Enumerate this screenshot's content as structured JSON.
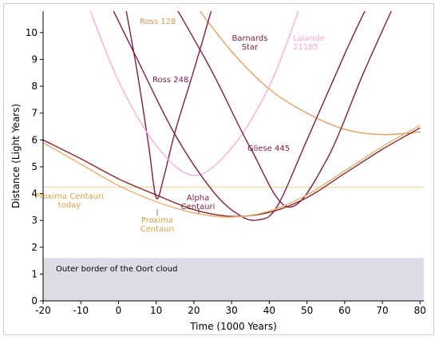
{
  "chart_data": {
    "type": "line",
    "title": "",
    "xlabel": "Time (1000 Years)",
    "ylabel": "Distance (Light Years)",
    "xlim": [
      -20,
      81
    ],
    "ylim": [
      0,
      10.8
    ],
    "xticks": [
      -20,
      -10,
      0,
      10,
      20,
      30,
      40,
      50,
      60,
      70,
      80
    ],
    "yticks": [
      0,
      1,
      2,
      3,
      4,
      5,
      6,
      7,
      8,
      9,
      10
    ],
    "grid": false,
    "oort": {
      "label": "Outer border of the Oort cloud",
      "y": 1.6,
      "color": "#dcdce6"
    },
    "today": {
      "label": "Proxima Centauri today",
      "y": 4.24,
      "color": "#f0d8a8"
    },
    "series": [
      {
        "name": "Ross 128",
        "color": "#e0a060",
        "points": [
          [
            20,
            11.1
          ],
          [
            30,
            9.3
          ],
          [
            40,
            7.9
          ],
          [
            50,
            7.0
          ],
          [
            60,
            6.4
          ],
          [
            70,
            6.2
          ],
          [
            80,
            6.3
          ]
        ]
      },
      {
        "name": "Barnards Star",
        "color": "#7a2048",
        "points": [
          [
            1.8,
            11.0
          ],
          [
            5,
            8.5
          ],
          [
            8,
            5.8
          ],
          [
            10,
            3.85
          ],
          [
            12,
            4.6
          ],
          [
            15,
            6.3
          ],
          [
            20,
            8.6
          ],
          [
            25,
            11.0
          ]
        ]
      },
      {
        "name": "Lalande 21185",
        "color": "#f0b0d8",
        "points": [
          [
            -8,
            11.0
          ],
          [
            0,
            8.2
          ],
          [
            10,
            5.8
          ],
          [
            20,
            4.68
          ],
          [
            30,
            5.7
          ],
          [
            40,
            8.0
          ],
          [
            48,
            10.9
          ]
        ]
      },
      {
        "name": "Ross 248",
        "color": "#7a2048",
        "points": [
          [
            -2,
            11.0
          ],
          [
            5,
            9.0
          ],
          [
            15,
            6.2
          ],
          [
            25,
            4.1
          ],
          [
            32,
            3.2
          ],
          [
            37,
            3.02
          ],
          [
            42,
            3.5
          ],
          [
            50,
            6.0
          ],
          [
            60,
            9.2
          ],
          [
            66,
            11.0
          ]
        ]
      },
      {
        "name": "Gliese 445",
        "color": "#7a2048",
        "points": [
          [
            15,
            11.0
          ],
          [
            25,
            8.5
          ],
          [
            35,
            5.7
          ],
          [
            45,
            3.5
          ],
          [
            55,
            5.2
          ],
          [
            65,
            8.5
          ],
          [
            73,
            11.0
          ]
        ]
      },
      {
        "name": "Alpha Centauri",
        "color": "#8a2a2a",
        "points": [
          [
            -20,
            6.0
          ],
          [
            -10,
            5.3
          ],
          [
            0,
            4.55
          ],
          [
            10,
            3.95
          ],
          [
            20,
            3.4
          ],
          [
            30,
            3.15
          ],
          [
            40,
            3.3
          ],
          [
            50,
            3.85
          ],
          [
            60,
            4.75
          ],
          [
            70,
            5.65
          ],
          [
            80,
            6.45
          ]
        ]
      },
      {
        "name": "Proxima Centauri",
        "color": "#e8b070",
        "points": [
          [
            -20,
            5.9
          ],
          [
            -10,
            5.1
          ],
          [
            0,
            4.3
          ],
          [
            10,
            3.7
          ],
          [
            20,
            3.28
          ],
          [
            30,
            3.12
          ],
          [
            40,
            3.35
          ],
          [
            50,
            3.95
          ],
          [
            60,
            4.85
          ],
          [
            70,
            5.75
          ],
          [
            80,
            6.55
          ]
        ]
      }
    ],
    "annotations": [
      {
        "text": "Ross 128",
        "color": "#d69a5a"
      },
      {
        "text": "Barnards\nStar",
        "color": "#7a2048"
      },
      {
        "text": "Lalande\n21185",
        "color": "#eea6d0"
      },
      {
        "text": "Ross 248",
        "color": "#7a2048"
      },
      {
        "text": "Gliese 445",
        "color": "#7a2048"
      },
      {
        "text": "Alpha\nCentauri",
        "color": "#7a2048"
      },
      {
        "text": "Proxima\nCentauri",
        "color": "#d4a048"
      },
      {
        "text": "Proxima Centauri\ntoday",
        "color": "#d4a048"
      },
      {
        "text": "Outer border of the Oort cloud",
        "color": "#000000"
      }
    ]
  }
}
